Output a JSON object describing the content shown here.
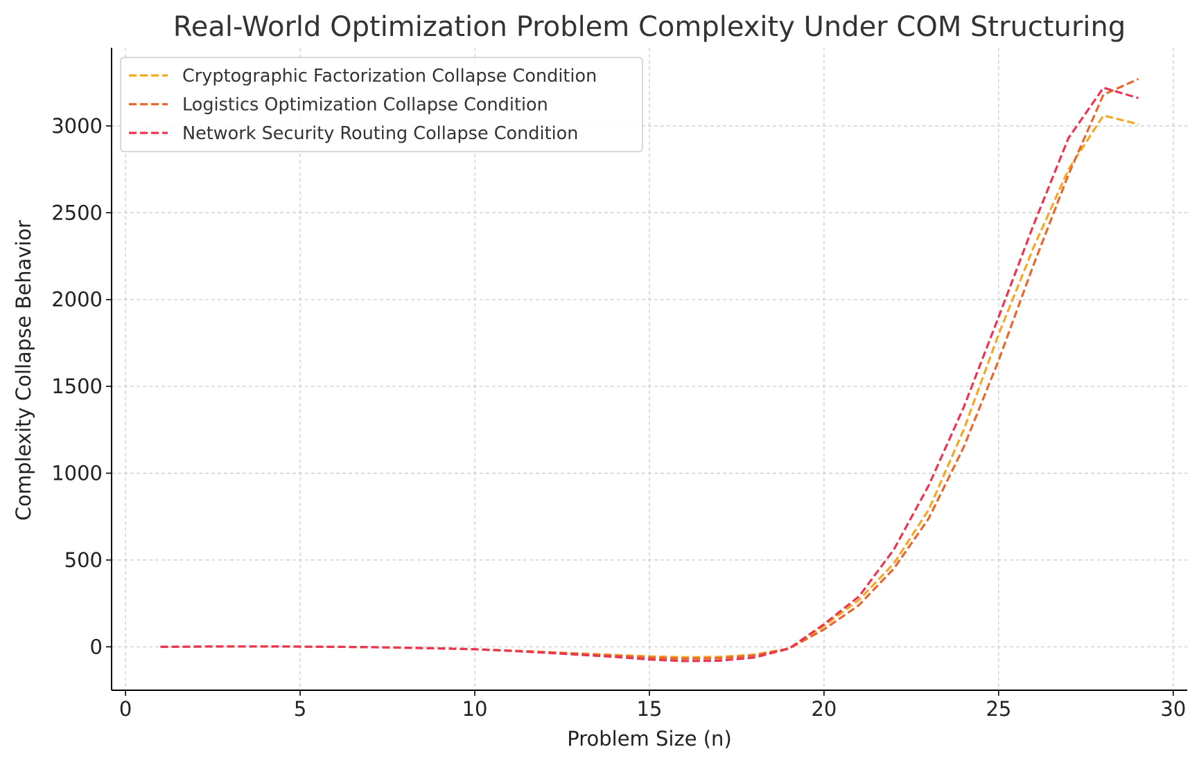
{
  "chart_data": {
    "type": "line",
    "title": "Real-World Optimization Problem Complexity Under COM Structuring",
    "xlabel": "Problem Size (n)",
    "ylabel": "Complexity Collapse Behavior",
    "xlim": [
      -0.4,
      30.4
    ],
    "ylim": [
      -250,
      3450
    ],
    "xticks": [
      0,
      5,
      10,
      15,
      20,
      25,
      30
    ],
    "yticks": [
      0,
      500,
      1000,
      1500,
      2000,
      2500,
      3000
    ],
    "grid": true,
    "legend_position": "top-left",
    "x": [
      1,
      2,
      3,
      4,
      5,
      6,
      7,
      8,
      9,
      10,
      11,
      12,
      13,
      14,
      15,
      16,
      17,
      18,
      19,
      20,
      21,
      22,
      23,
      24,
      25,
      26,
      27,
      28,
      29
    ],
    "series": [
      {
        "name": "Cryptographic Factorization Collapse Condition",
        "color": "#f5a623",
        "values": [
          0,
          1,
          2,
          2,
          1,
          0,
          -2,
          -5,
          -9,
          -14,
          -21,
          -29,
          -38,
          -47,
          -55,
          -60,
          -58,
          -45,
          -10,
          120,
          270,
          480,
          790,
          1250,
          1800,
          2300,
          2750,
          3060,
          3010
        ]
      },
      {
        "name": "Logistics Optimization Collapse Condition",
        "color": "#e8672a",
        "values": [
          0,
          1,
          2,
          2,
          1,
          0,
          -2,
          -5,
          -9,
          -14,
          -22,
          -31,
          -41,
          -51,
          -62,
          -68,
          -66,
          -50,
          -10,
          100,
          240,
          450,
          740,
          1150,
          1650,
          2200,
          2720,
          3180,
          3270
        ]
      },
      {
        "name": "Network Security Routing Collapse Condition",
        "color": "#ea3452",
        "values": [
          0,
          1,
          2,
          2,
          1,
          0,
          -2,
          -5,
          -9,
          -14,
          -23,
          -34,
          -46,
          -58,
          -73,
          -82,
          -80,
          -62,
          -10,
          130,
          290,
          560,
          930,
          1380,
          1900,
          2430,
          2930,
          3220,
          3160
        ]
      }
    ]
  }
}
